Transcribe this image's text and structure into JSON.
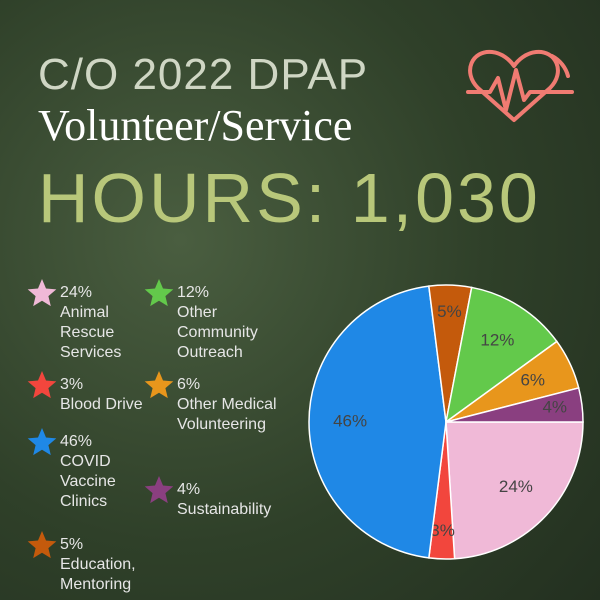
{
  "header": {
    "line1": "C/O 2022 DPAP",
    "line2": "Volunteer/Service",
    "line3": "HOURS: 1,030"
  },
  "chart_data": {
    "type": "pie",
    "categories": [
      "Animal Rescue Services",
      "Blood Drive",
      "COVID Vaccine Clinics",
      "Education, Mentoring",
      "Other Community Outreach",
      "Other Medical Volunteering",
      "Sustainability"
    ],
    "values": [
      24,
      3,
      46,
      5,
      12,
      6,
      4
    ],
    "value_labels": [
      "24%",
      "3%",
      "46%",
      "5%",
      "12%",
      "6%",
      "4%"
    ],
    "colors": [
      "#f0b9d7",
      "#f2463d",
      "#1f88e6",
      "#c45a0c",
      "#63c94b",
      "#e8961c",
      "#8a3f80"
    ]
  }
}
